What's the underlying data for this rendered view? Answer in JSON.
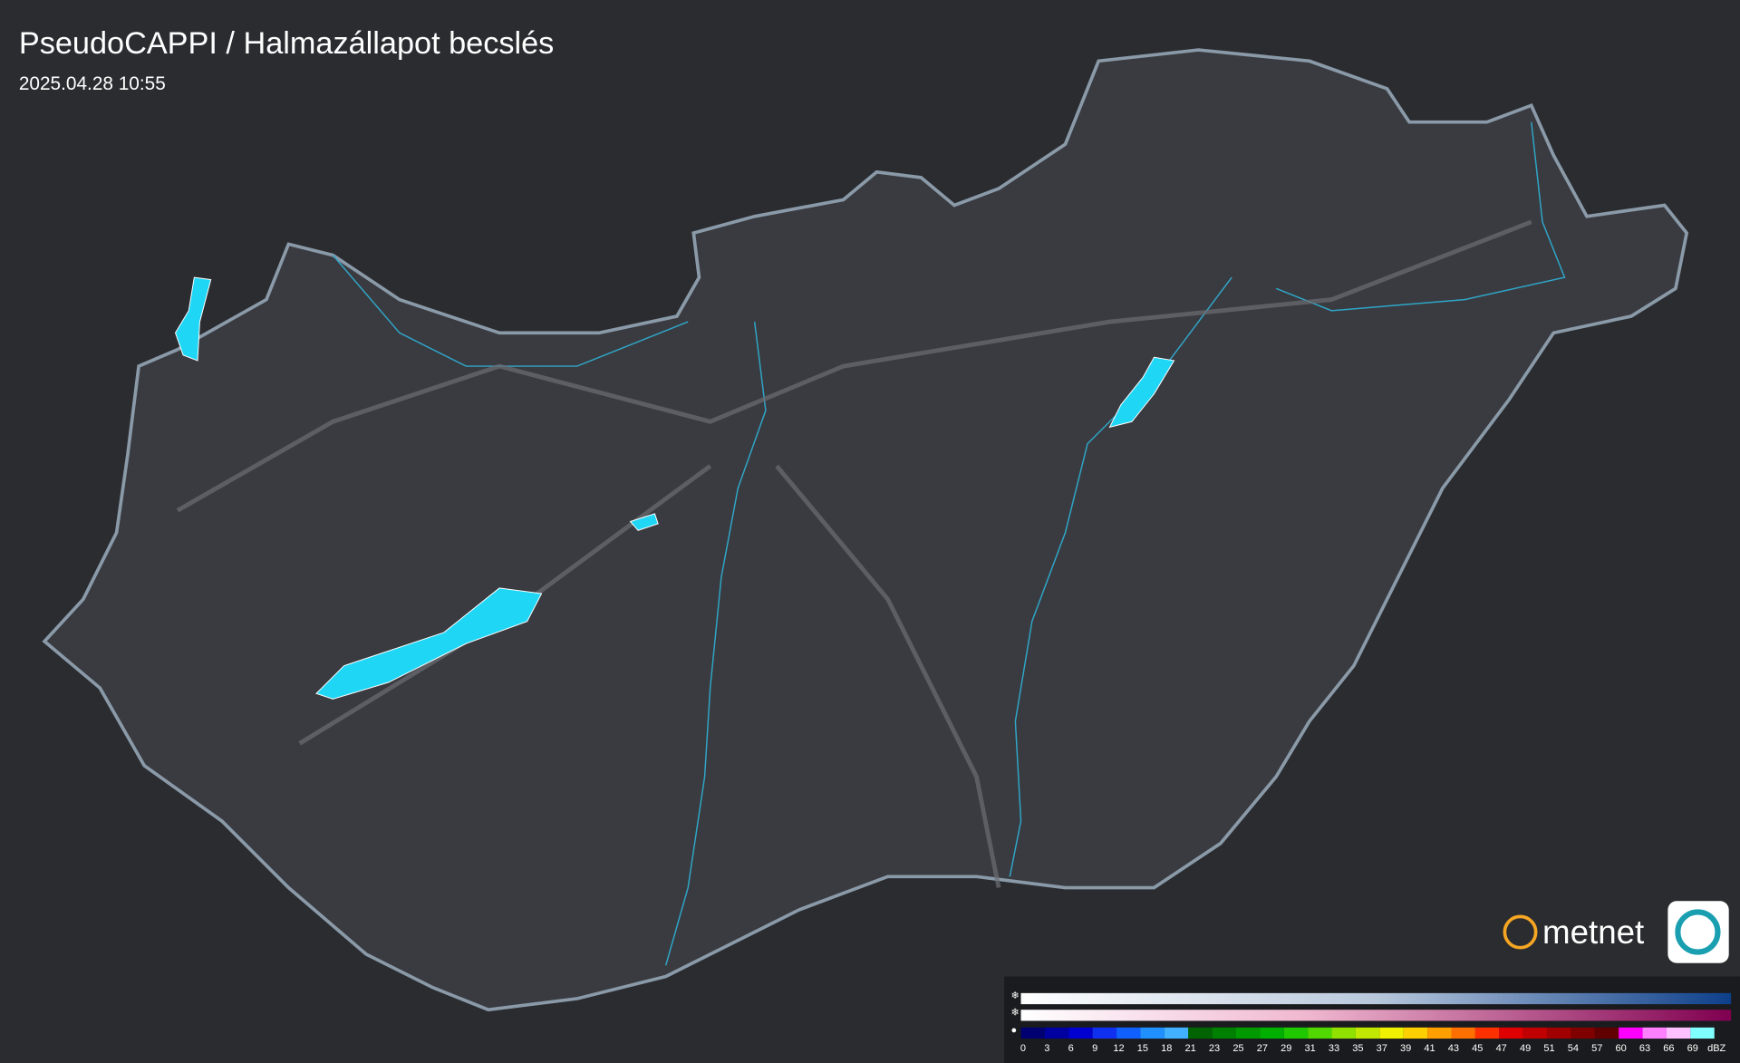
{
  "header": {
    "title": "PseudoCAPPI  / Halmazállapot becslés",
    "timestamp": "2025.04.28 10:55"
  },
  "logo": {
    "text": "metnet"
  },
  "legend": {
    "labels": [
      0,
      3,
      6,
      9,
      12,
      15,
      18,
      21,
      23,
      25,
      27,
      29,
      31,
      33,
      35,
      37,
      39,
      41,
      43,
      45,
      47,
      49,
      51,
      54,
      57,
      60,
      63,
      66,
      69
    ],
    "unit": "dBZ",
    "rain_colors": [
      "#000070",
      "#0000a0",
      "#0000d0",
      "#1030f0",
      "#1060ff",
      "#2090ff",
      "#40b0ff",
      "#006400",
      "#008000",
      "#009900",
      "#00b000",
      "#20c800",
      "#50d800",
      "#90e000",
      "#c0e800",
      "#f0f000",
      "#ffd000",
      "#ffa000",
      "#ff7000",
      "#ff3000",
      "#e00000",
      "#c00000",
      "#a00000",
      "#800000",
      "#600000",
      "#ff00ff",
      "#ff80ff",
      "#ffc0ff",
      "#80ffff"
    ]
  }
}
